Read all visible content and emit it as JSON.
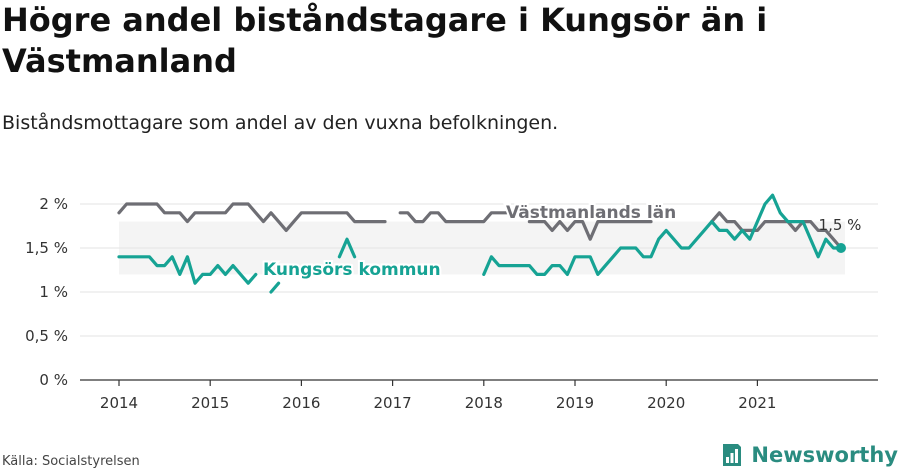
{
  "header": {
    "title": "Högre andel biståndstagare i Kungsör än i Västmanland",
    "subtitle": "Biståndsmottagare som andel av den vuxna befolkningen."
  },
  "footer": {
    "source": "Källa: Socialstyrelsen",
    "brand": "Newsworthy"
  },
  "colors": {
    "kungsor": "#16a394",
    "vastmanland": "#6e6e74",
    "band": "#f4f4f4"
  },
  "chart_data": {
    "type": "line",
    "title": "Högre andel biståndstagare i Kungsör än i Västmanland",
    "subtitle": "Biståndsmottagare som andel av den vuxna befolkningen.",
    "xlabel": "",
    "ylabel": "",
    "ylim": [
      0,
      2.2
    ],
    "xlim": [
      "2014-01",
      "2022-02"
    ],
    "y_ticks": [
      0,
      0.5,
      1,
      1.5,
      2
    ],
    "y_tick_labels": [
      "0 %",
      "0,5 %",
      "1 %",
      "1,5 %",
      "2 %"
    ],
    "x_ticks": [
      2014,
      2015,
      2016,
      2017,
      2018,
      2019,
      2020,
      2021
    ],
    "x_tick_labels": [
      "2014",
      "2015",
      "2016",
      "2017",
      "2018",
      "2019",
      "2020",
      "2021"
    ],
    "grid": true,
    "series": [
      {
        "name": "Västmanlands län",
        "x": [
          "2014-01",
          "2014-02",
          "2014-03",
          "2014-04",
          "2014-05",
          "2014-06",
          "2014-07",
          "2014-08",
          "2014-09",
          "2014-10",
          "2014-11",
          "2014-12",
          "2015-01",
          "2015-02",
          "2015-03",
          "2015-04",
          "2015-05",
          "2015-06",
          "2015-07",
          "2015-08",
          "2015-09",
          "2015-10",
          "2015-11",
          "2015-12",
          "2016-01",
          "2016-02",
          "2016-03",
          "2016-04",
          "2016-05",
          "2016-06",
          "2016-07",
          "2016-08",
          "2016-09",
          "2016-10",
          "2016-11",
          "2016-12",
          "2017-01",
          "2017-02",
          "2017-03",
          "2017-04",
          "2017-05",
          "2017-06",
          "2017-07",
          "2017-08",
          "2017-09",
          "2017-10",
          "2017-11",
          "2017-12",
          "2018-01",
          "2018-02",
          "2018-03",
          "2018-04",
          "2018-05",
          "2018-06",
          "2018-07",
          "2018-08",
          "2018-09",
          "2018-10",
          "2018-11",
          "2018-12",
          "2019-01",
          "2019-02",
          "2019-03",
          "2019-04",
          "2019-05",
          "2019-06",
          "2019-07",
          "2019-08",
          "2019-09",
          "2019-10",
          "2019-11",
          "2019-12",
          "2020-01",
          "2020-02",
          "2020-03",
          "2020-04",
          "2020-05",
          "2020-06",
          "2020-07",
          "2020-08",
          "2020-09",
          "2020-10",
          "2020-11",
          "2020-12",
          "2021-01",
          "2021-02",
          "2021-03",
          "2021-04",
          "2021-05",
          "2021-06",
          "2021-07",
          "2021-08",
          "2021-09",
          "2021-10",
          "2021-11",
          "2021-12"
        ],
        "values": [
          1.9,
          2.0,
          2.0,
          2.0,
          2.0,
          2.0,
          1.9,
          1.9,
          1.9,
          1.8,
          1.9,
          1.9,
          1.9,
          1.9,
          1.9,
          2.0,
          2.0,
          2.0,
          1.9,
          1.8,
          1.9,
          1.8,
          1.7,
          1.8,
          1.9,
          1.9,
          1.9,
          1.9,
          1.9,
          1.9,
          1.9,
          1.8,
          1.8,
          1.8,
          1.8,
          1.8,
          null,
          1.9,
          1.9,
          1.8,
          1.8,
          1.9,
          1.9,
          1.8,
          1.8,
          1.8,
          1.8,
          1.8,
          1.8,
          1.9,
          1.9,
          1.9,
          null,
          null,
          1.8,
          1.8,
          1.8,
          1.7,
          1.8,
          1.7,
          1.8,
          1.8,
          1.6,
          1.8,
          1.8,
          1.8,
          1.8,
          1.8,
          1.8,
          1.8,
          1.8,
          null,
          null,
          null,
          null,
          null,
          null,
          null,
          1.8,
          1.9,
          1.8,
          1.8,
          1.7,
          1.7,
          1.7,
          1.8,
          1.8,
          1.8,
          1.8,
          1.7,
          1.8,
          1.8,
          1.7,
          1.7,
          1.6,
          1.5
        ]
      },
      {
        "name": "Kungsörs kommun",
        "x": [
          "2014-01",
          "2014-02",
          "2014-03",
          "2014-04",
          "2014-05",
          "2014-06",
          "2014-07",
          "2014-08",
          "2014-09",
          "2014-10",
          "2014-11",
          "2014-12",
          "2015-01",
          "2015-02",
          "2015-03",
          "2015-04",
          "2015-05",
          "2015-06",
          "2015-07",
          "2015-08",
          "2015-09",
          "2015-10",
          "2015-11",
          "2015-12",
          "2016-01",
          "2016-02",
          "2016-03",
          "2016-04",
          "2016-05",
          "2016-06",
          "2016-07",
          "2016-08",
          "2016-09",
          "2016-10",
          "2016-11",
          "2016-12",
          "2017-01",
          "2017-02",
          "2017-03",
          "2017-04",
          "2017-05",
          "2017-06",
          "2017-07",
          "2017-08",
          "2017-09",
          "2017-10",
          "2017-11",
          "2017-12",
          "2018-01",
          "2018-02",
          "2018-03",
          "2018-04",
          "2018-05",
          "2018-06",
          "2018-07",
          "2018-08",
          "2018-09",
          "2018-10",
          "2018-11",
          "2018-12",
          "2019-01",
          "2019-02",
          "2019-03",
          "2019-04",
          "2019-05",
          "2019-06",
          "2019-07",
          "2019-08",
          "2019-09",
          "2019-10",
          "2019-11",
          "2019-12",
          "2020-01",
          "2020-02",
          "2020-03",
          "2020-04",
          "2020-05",
          "2020-06",
          "2020-07",
          "2020-08",
          "2020-09",
          "2020-10",
          "2020-11",
          "2020-12",
          "2021-01",
          "2021-02",
          "2021-03",
          "2021-04",
          "2021-05",
          "2021-06",
          "2021-07",
          "2021-08",
          "2021-09",
          "2021-10",
          "2021-11",
          "2021-12"
        ],
        "values": [
          1.4,
          1.4,
          1.4,
          1.4,
          1.4,
          1.3,
          1.3,
          1.4,
          1.2,
          1.4,
          1.1,
          1.2,
          1.2,
          1.3,
          1.2,
          1.3,
          1.2,
          1.1,
          1.2,
          null,
          1.0,
          1.1,
          null,
          null,
          null,
          null,
          null,
          null,
          null,
          1.4,
          1.6,
          1.4,
          null,
          null,
          null,
          null,
          null,
          null,
          null,
          null,
          null,
          null,
          null,
          null,
          null,
          null,
          null,
          null,
          1.2,
          1.4,
          1.3,
          1.3,
          1.3,
          1.3,
          1.3,
          1.2,
          1.2,
          1.3,
          1.3,
          1.2,
          1.4,
          1.4,
          1.4,
          1.2,
          1.3,
          1.4,
          1.5,
          1.5,
          1.5,
          1.4,
          1.4,
          1.6,
          1.7,
          1.6,
          1.5,
          1.5,
          1.6,
          1.7,
          1.8,
          1.7,
          1.7,
          1.6,
          1.7,
          1.6,
          1.8,
          2.0,
          2.1,
          1.9,
          1.8,
          1.8,
          1.8,
          1.6,
          1.4,
          1.6,
          1.5,
          1.5
        ]
      }
    ],
    "series_labels": [
      "Västmanlands län",
      "Kungsörs kommun"
    ],
    "annotations": [
      {
        "text": "1,5 %",
        "series": "Kungsörs kommun",
        "x": "2021-12",
        "y": 1.5
      }
    ]
  }
}
